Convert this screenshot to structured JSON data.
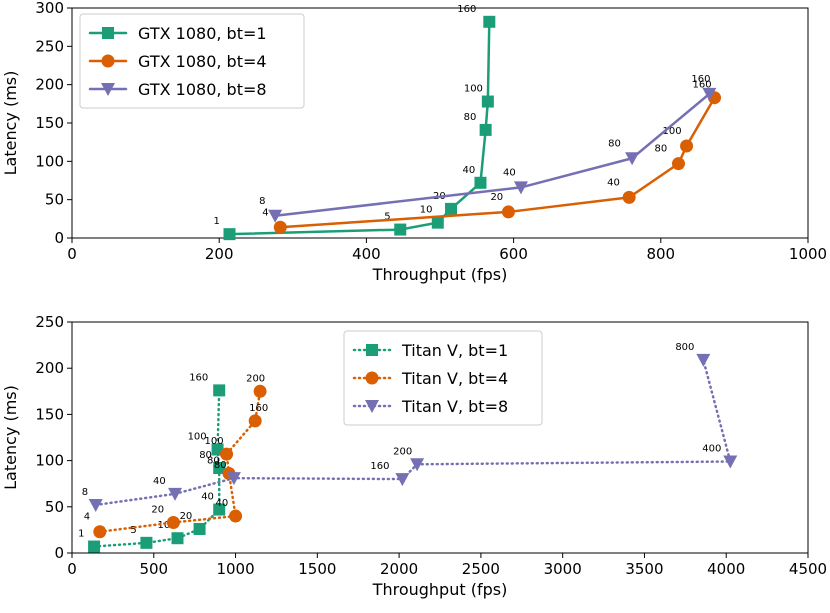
{
  "chart_data": [
    {
      "type": "line",
      "xlabel": "Throughput (fps)",
      "ylabel": "Latency (ms)",
      "xlim": [
        0,
        1000
      ],
      "ylim": [
        0,
        300
      ],
      "xticks": [
        0,
        200,
        400,
        600,
        800,
        1000
      ],
      "yticks": [
        0,
        50,
        100,
        150,
        200,
        250,
        300
      ],
      "legend_position": "upper left",
      "series": [
        {
          "name": "GTX 1080, bt=1",
          "color": "#1b9e77",
          "marker": "square",
          "linestyle": "solid",
          "x": [
            214,
            446,
            497,
            515,
            555,
            562,
            565,
            567
          ],
          "y": [
            5,
            11,
            20,
            38,
            72,
            141,
            178,
            282
          ],
          "labels": [
            "1",
            "5",
            "10",
            "20",
            "40",
            "80",
            "100",
            "160"
          ]
        },
        {
          "name": "GTX 1080, bt=4",
          "color": "#d95f02",
          "marker": "circle",
          "linestyle": "solid",
          "x": [
            283,
            593,
            757,
            824,
            835,
            873
          ],
          "y": [
            14,
            34,
            53,
            97,
            120,
            183
          ],
          "labels": [
            "4",
            "20",
            "40",
            "80",
            "100",
            "160"
          ]
        },
        {
          "name": "GTX 1080, bt=8",
          "color": "#7570b3",
          "marker": "triangle-down",
          "linestyle": "solid",
          "x": [
            276,
            610,
            761,
            866
          ],
          "y": [
            29,
            66,
            104,
            188
          ],
          "labels": [
            "8",
            "40",
            "80",
            "160"
          ]
        }
      ]
    },
    {
      "type": "line",
      "xlabel": "Throughput (fps)",
      "ylabel": "Latency (ms)",
      "xlim": [
        0,
        4500
      ],
      "ylim": [
        0,
        250
      ],
      "xticks": [
        0,
        500,
        1000,
        1500,
        2000,
        2500,
        3000,
        3500,
        4000,
        4500
      ],
      "yticks": [
        0,
        50,
        100,
        150,
        200,
        250
      ],
      "legend_position": "upper center",
      "series": [
        {
          "name": "Titan V, bt=1",
          "color": "#1b9e77",
          "marker": "square",
          "linestyle": "dotted",
          "x": [
            135,
            455,
            645,
            780,
            900,
            900,
            890,
            900
          ],
          "y": [
            7,
            11,
            16,
            26,
            47,
            92,
            112,
            176
          ],
          "labels": [
            "1",
            "5",
            "10",
            "20",
            "40",
            "80",
            "100",
            "160"
          ]
        },
        {
          "name": "Titan V, bt=4",
          "color": "#d95f02",
          "marker": "circle",
          "linestyle": "dotted",
          "x": [
            170,
            620,
            1000,
            960,
            945,
            1120,
            1150
          ],
          "y": [
            23,
            33,
            40,
            86,
            107,
            143,
            175
          ],
          "labels": [
            "4",
            "20",
            "40",
            "80",
            "100",
            "160",
            "200"
          ]
        },
        {
          "name": "Titan V, bt=8",
          "color": "#7570b3",
          "marker": "triangle-down",
          "linestyle": "dotted",
          "x": [
            145,
            630,
            990,
            2020,
            2110,
            4025,
            3860
          ],
          "y": [
            52,
            64,
            81,
            80,
            96,
            99,
            209
          ],
          "labels": [
            "8",
            "40",
            "80",
            "160",
            "200",
            "400",
            "800"
          ]
        }
      ]
    }
  ]
}
